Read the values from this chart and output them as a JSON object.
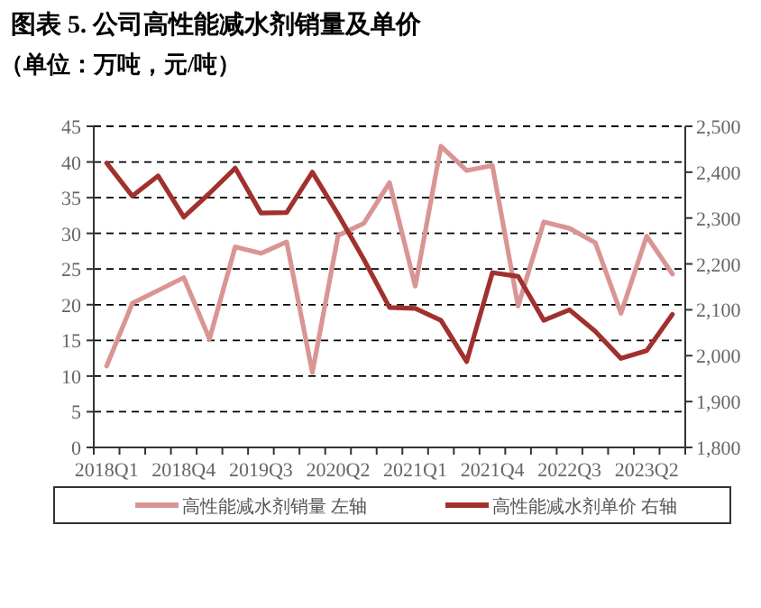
{
  "chart_data": {
    "type": "line",
    "title": "图表 5. 公司高性能减水剂销量及单价",
    "subtitle": "（单位：万吨，元/吨）",
    "categories": [
      "2018Q1",
      null,
      null,
      "2018Q4",
      null,
      null,
      "2019Q3",
      null,
      null,
      "2020Q2",
      null,
      null,
      "2021Q1",
      null,
      null,
      "2021Q4",
      null,
      null,
      "2022Q3",
      null,
      null,
      "2023Q2",
      null
    ],
    "series": [
      {
        "name": "高性能减水剂销量 左轴",
        "color": "#d99594",
        "values": [
          11.4,
          20.2,
          22.0,
          23.8,
          15.2,
          28.1,
          27.2,
          28.8,
          10.5,
          29.7,
          31.4,
          37.1,
          22.6,
          42.2,
          38.8,
          39.5,
          19.8,
          31.6,
          30.7,
          28.7,
          18.8,
          29.6,
          24.3
        ]
      },
      {
        "name": "高性能减水剂单价 右轴",
        "color": "#a0312e",
        "axis": "y2",
        "values": [
          2420,
          2348,
          2392,
          2302,
          2354,
          2409,
          2311,
          2312,
          2400,
          2308,
          2210,
          2105,
          2103,
          2077,
          1987,
          2181,
          2173,
          2077,
          2100,
          2053,
          1994,
          2011,
          2090
        ]
      }
    ],
    "ylim": [
      0,
      45
    ],
    "yticks": [
      0,
      5,
      10,
      15,
      20,
      25,
      30,
      35,
      40,
      45
    ],
    "y2lim": [
      1800,
      2500
    ],
    "y2ticks": [
      {
        "value": 1800,
        "label": "1,800"
      },
      {
        "value": 1900,
        "label": "1,900"
      },
      {
        "value": 2000,
        "label": "2,000"
      },
      {
        "value": 2100,
        "label": "2,100"
      },
      {
        "value": 2200,
        "label": "2,200"
      },
      {
        "value": 2300,
        "label": "2,300"
      },
      {
        "value": 2400,
        "label": "2,400"
      },
      {
        "value": 2500,
        "label": "2,500"
      }
    ],
    "grid": "y",
    "line_style": "solid",
    "marker": "none",
    "legend": "bottom"
  }
}
